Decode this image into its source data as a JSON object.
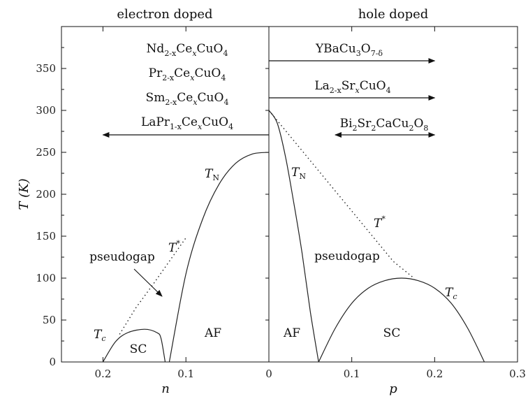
{
  "chart_data": {
    "type": "line",
    "panels": [
      {
        "title": "electron doped",
        "xlabel": "n",
        "xlim": [
          0.25,
          0
        ],
        "x_ticks": [
          "0.2",
          "0.1",
          "0"
        ],
        "series": [
          {
            "name": "T_N",
            "style": "solid",
            "x": [
              0.12,
              0.1,
              0.08,
              0.06,
              0.04,
              0.02,
              0.0
            ],
            "y": [
              0,
              105,
              170,
              212,
              237,
              248,
              250
            ]
          },
          {
            "name": "T_c",
            "style": "solid",
            "x": [
              0.2,
              0.185,
              0.17,
              0.15,
              0.135,
              0.13,
              0.125
            ],
            "y": [
              0,
              24,
              35,
              39,
              35,
              28,
              0
            ]
          },
          {
            "name": "T*",
            "style": "dotted",
            "x": [
              0.18,
              0.16,
              0.14,
              0.12,
              0.1
            ],
            "y": [
              33,
              65,
              92,
              120,
              148
            ]
          }
        ]
      },
      {
        "title": "hole doped",
        "xlabel": "p",
        "xlim": [
          0,
          0.3
        ],
        "x_ticks": [
          "0",
          "0.1",
          "0.2",
          "0.3"
        ],
        "series": [
          {
            "name": "T_N",
            "style": "solid",
            "x": [
              0.0,
              0.01,
              0.02,
              0.03,
              0.04,
              0.05,
              0.06
            ],
            "y": [
              300,
              285,
              245,
              190,
              130,
              60,
              0
            ]
          },
          {
            "name": "T_c",
            "style": "solid",
            "x": [
              0.06,
              0.08,
              0.1,
              0.12,
              0.14,
              0.16,
              0.18,
              0.2,
              0.22,
              0.24,
              0.26
            ],
            "y": [
              0,
              40,
              70,
              88,
              97,
              100,
              97,
              88,
              70,
              40,
              0
            ]
          },
          {
            "name": "T*",
            "style": "dotted",
            "x": [
              0.0,
              0.05,
              0.1,
              0.15,
              0.175
            ],
            "y": [
              300,
              240,
              180,
              120,
              100
            ]
          }
        ]
      }
    ],
    "ylabel": "T (K)",
    "ylim": [
      0,
      400
    ],
    "y_ticks": [
      "0",
      "50",
      "100",
      "150",
      "200",
      "250",
      "300",
      "350"
    ],
    "region_labels": {
      "electron": [
        "SC",
        "AF",
        "pseudogap"
      ],
      "hole": [
        "AF",
        "pseudogap",
        "SC"
      ]
    },
    "compounds": {
      "electron": [
        {
          "base": "Nd",
          "parts": [
            [
              "2-x",
              "sub"
            ],
            [
              "Ce",
              ""
            ],
            [
              "x",
              "sub"
            ],
            [
              "CuO",
              ""
            ],
            [
              "4",
              "sub"
            ]
          ]
        },
        {
          "base": "Pr",
          "parts": [
            [
              "2-x",
              "sub"
            ],
            [
              "Ce",
              ""
            ],
            [
              "x",
              "sub"
            ],
            [
              "CuO",
              ""
            ],
            [
              "4",
              "sub"
            ]
          ]
        },
        {
          "base": "Sm",
          "parts": [
            [
              "2-x",
              "sub"
            ],
            [
              "Ce",
              ""
            ],
            [
              "x",
              "sub"
            ],
            [
              "CuO",
              ""
            ],
            [
              "4",
              "sub"
            ]
          ]
        },
        {
          "base": "LaPr",
          "parts": [
            [
              "1-x",
              "sub"
            ],
            [
              "Ce",
              ""
            ],
            [
              "x",
              "sub"
            ],
            [
              "CuO",
              ""
            ],
            [
              "4",
              "sub"
            ]
          ]
        }
      ],
      "hole": [
        {
          "base": "YBaCu",
          "parts": [
            [
              "3",
              "sub"
            ],
            [
              "O",
              ""
            ],
            [
              "7-δ",
              "sub"
            ]
          ]
        },
        {
          "base": "La",
          "parts": [
            [
              "2-x",
              "sub"
            ],
            [
              "Sr",
              ""
            ],
            [
              "x",
              "sub"
            ],
            [
              "CuO",
              ""
            ],
            [
              "4",
              "sub"
            ]
          ]
        },
        {
          "base": "Bi",
          "parts": [
            [
              "2",
              "sub"
            ],
            [
              "Sr",
              ""
            ],
            [
              "2",
              "sub"
            ],
            [
              "CaCu",
              ""
            ],
            [
              "2",
              "sub"
            ],
            [
              "O",
              ""
            ],
            [
              "8",
              "sub"
            ]
          ]
        }
      ]
    },
    "arrows": {
      "electron": [
        {
          "from": 0,
          "to": 0.2
        }
      ],
      "hole": [
        {
          "from": 0,
          "to": 0.2
        },
        {
          "from": 0,
          "to": 0.2
        },
        {
          "from": 0.08,
          "to": 0.2
        }
      ]
    },
    "curve_labels": {
      "electron": {
        "TN": "T",
        "TN_sub": "N",
        "Tc": "T",
        "Tc_sub": "c",
        "Tstar": "T",
        "Tstar_sup": "*"
      },
      "hole": {
        "TN": "T",
        "TN_sub": "N",
        "Tc": "T",
        "Tc_sub": "c",
        "Tstar": "T",
        "Tstar_sup": "*"
      }
    }
  }
}
